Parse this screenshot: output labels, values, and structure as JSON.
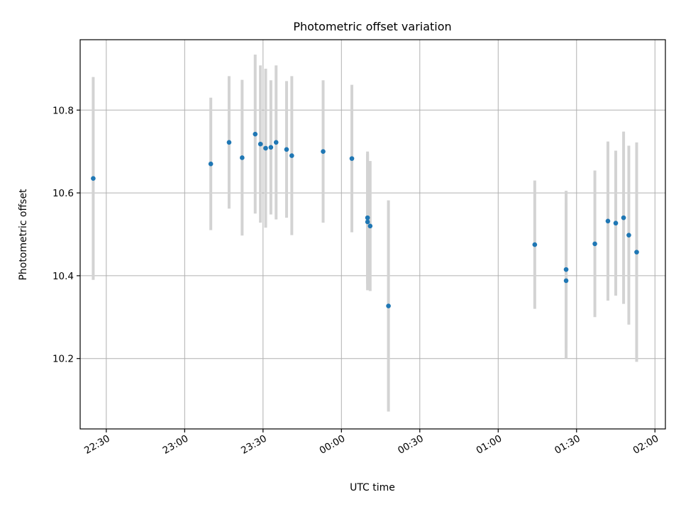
{
  "chart_data": {
    "type": "scatter",
    "title": "Photometric offset variation",
    "xlabel": "UTC time",
    "ylabel": "Photometric offset",
    "x_axis_kind": "time",
    "xlim": [
      "22:20",
      "02:04"
    ],
    "ylim": [
      10.03,
      10.97
    ],
    "grid": true,
    "x_ticks": [
      "22:30",
      "23:00",
      "23:30",
      "00:00",
      "00:30",
      "01:00",
      "01:30",
      "02:00"
    ],
    "y_ticks": [
      10.2,
      10.4,
      10.6,
      10.8
    ],
    "marker_color": "#1f77b4",
    "errorbar_color": "#d3d3d3",
    "points": [
      {
        "x": "22:25",
        "y": 10.635,
        "err": 0.245
      },
      {
        "x": "23:10",
        "y": 10.67,
        "err": 0.16
      },
      {
        "x": "23:17",
        "y": 10.722,
        "err": 0.16
      },
      {
        "x": "23:22",
        "y": 10.685,
        "err": 0.188
      },
      {
        "x": "23:27",
        "y": 10.742,
        "err": 0.192
      },
      {
        "x": "23:29",
        "y": 10.718,
        "err": 0.19
      },
      {
        "x": "23:31",
        "y": 10.708,
        "err": 0.192
      },
      {
        "x": "23:33",
        "y": 10.71,
        "err": 0.162
      },
      {
        "x": "23:35",
        "y": 10.722,
        "err": 0.186
      },
      {
        "x": "23:39",
        "y": 10.705,
        "err": 0.165
      },
      {
        "x": "23:41",
        "y": 10.69,
        "err": 0.192
      },
      {
        "x": "23:53",
        "y": 10.7,
        "err": 0.172
      },
      {
        "x": "00:04",
        "y": 10.683,
        "err": 0.178
      },
      {
        "x": "00:10",
        "y": 10.54,
        "err": 0.16
      },
      {
        "x": "00:10",
        "y": 10.53,
        "err": 0.165
      },
      {
        "x": "00:11",
        "y": 10.52,
        "err": 0.157
      },
      {
        "x": "00:18",
        "y": 10.327,
        "err": 0.255
      },
      {
        "x": "01:14",
        "y": 10.475,
        "err": 0.155
      },
      {
        "x": "01:26",
        "y": 10.388,
        "err": 0.188
      },
      {
        "x": "01:26",
        "y": 10.415,
        "err": 0.19
      },
      {
        "x": "01:37",
        "y": 10.477,
        "err": 0.177
      },
      {
        "x": "01:42",
        "y": 10.532,
        "err": 0.192
      },
      {
        "x": "01:45",
        "y": 10.527,
        "err": 0.175
      },
      {
        "x": "01:48",
        "y": 10.54,
        "err": 0.208
      },
      {
        "x": "01:50",
        "y": 10.498,
        "err": 0.216
      },
      {
        "x": "01:53",
        "y": 10.457,
        "err": 0.265
      }
    ]
  }
}
